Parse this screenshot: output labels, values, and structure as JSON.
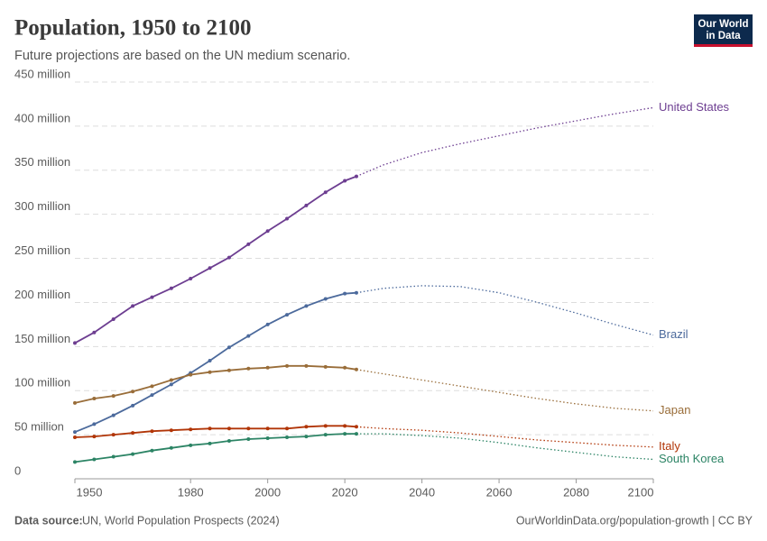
{
  "chart_data": {
    "type": "line",
    "title": "Population, 1950 to 2100",
    "subtitle": "Future projections are based on the UN medium scenario.",
    "source_label": "Data source:",
    "source": "UN, World Population Prospects (2024)",
    "footer_right": "OurWorldinData.org/population-growth | CC BY",
    "logo": [
      "Our World",
      "in Data"
    ],
    "x": [
      1950,
      1955,
      1960,
      1965,
      1970,
      1975,
      1980,
      1985,
      1990,
      1995,
      2000,
      2005,
      2010,
      2015,
      2020,
      2023,
      2030,
      2040,
      2050,
      2060,
      2070,
      2080,
      2090,
      2100
    ],
    "xlim": [
      1950,
      2100
    ],
    "xticks": [
      1950,
      1980,
      2000,
      2020,
      2040,
      2060,
      2080,
      2100
    ],
    "ylim": [
      0,
      450
    ],
    "yticks": [
      0,
      {
        "value": 50,
        "label": "50 million"
      },
      {
        "value": 100,
        "label": "100 million"
      },
      {
        "value": 150,
        "label": "150 million"
      },
      {
        "value": 200,
        "label": "200 million"
      },
      {
        "value": 250,
        "label": "250 million"
      },
      {
        "value": 300,
        "label": "300 million"
      },
      {
        "value": 350,
        "label": "350 million"
      },
      {
        "value": 400,
        "label": "400 million"
      },
      {
        "value": 450,
        "label": "450 million"
      }
    ],
    "grid": true,
    "series": [
      {
        "name": "United States",
        "color": "#6d3e91",
        "values": [
          154,
          166,
          181,
          196,
          206,
          216,
          227,
          239,
          251,
          266,
          281,
          295,
          310,
          325,
          338,
          343,
          null,
          null,
          null,
          null,
          null,
          null,
          null,
          null
        ],
        "projected": [
          null,
          null,
          null,
          null,
          null,
          null,
          null,
          null,
          null,
          null,
          null,
          null,
          null,
          null,
          null,
          343,
          356,
          370,
          380,
          389,
          398,
          406,
          414,
          421
        ]
      },
      {
        "name": "Brazil",
        "color": "#4c6a9c",
        "values": [
          53,
          62,
          72,
          83,
          95,
          107,
          120,
          134,
          149,
          162,
          175,
          186,
          196,
          204,
          210,
          211,
          null,
          null,
          null,
          null,
          null,
          null,
          null,
          null
        ],
        "projected": [
          null,
          null,
          null,
          null,
          null,
          null,
          null,
          null,
          null,
          null,
          null,
          null,
          null,
          null,
          null,
          211,
          216,
          219,
          218,
          211,
          200,
          188,
          175,
          163
        ]
      },
      {
        "name": "Japan",
        "color": "#996d39",
        "values": [
          86,
          91,
          94,
          99,
          105,
          112,
          118,
          121,
          123,
          125,
          126,
          128,
          128,
          127,
          126,
          124,
          null,
          null,
          null,
          null,
          null,
          null,
          null,
          null
        ],
        "projected": [
          null,
          null,
          null,
          null,
          null,
          null,
          null,
          null,
          null,
          null,
          null,
          null,
          null,
          null,
          null,
          124,
          119,
          112,
          105,
          98,
          91,
          85,
          80,
          77
        ]
      },
      {
        "name": "Italy",
        "color": "#b13507",
        "values": [
          47,
          48,
          50,
          52,
          54,
          55,
          56,
          57,
          57,
          57,
          57,
          57,
          59,
          60,
          60,
          59,
          null,
          null,
          null,
          null,
          null,
          null,
          null,
          null
        ],
        "projected": [
          null,
          null,
          null,
          null,
          null,
          null,
          null,
          null,
          null,
          null,
          null,
          null,
          null,
          null,
          null,
          59,
          57,
          55,
          52,
          48,
          44,
          41,
          38,
          36
        ]
      },
      {
        "name": "South Korea",
        "color": "#2c8465",
        "values": [
          19,
          22,
          25,
          28,
          32,
          35,
          38,
          40,
          43,
          45,
          46,
          47,
          48,
          50,
          51,
          51,
          null,
          null,
          null,
          null,
          null,
          null,
          null,
          null
        ],
        "projected": [
          null,
          null,
          null,
          null,
          null,
          null,
          null,
          null,
          null,
          null,
          null,
          null,
          null,
          null,
          null,
          51,
          51,
          49,
          46,
          41,
          35,
          30,
          25,
          22
        ]
      }
    ]
  }
}
